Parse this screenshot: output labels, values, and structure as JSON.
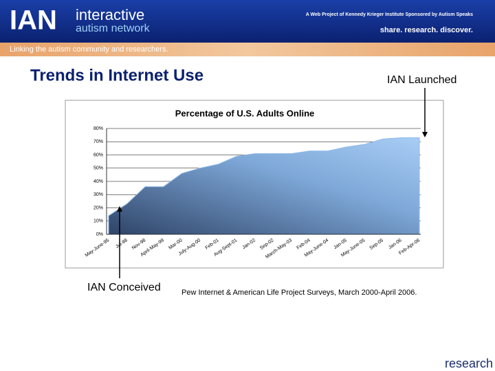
{
  "header": {
    "logo": "IAN",
    "name_line1": "interactive",
    "name_line2": "autism network",
    "sponsor": "A Web Project of Kennedy Krieger Institute  Sponsored by Autism Speaks",
    "motto": "share. research. discover.",
    "tagline": "Linking the autism community and researchers."
  },
  "slide_title": "Trends in Internet Use",
  "annotations": {
    "launched": "IAN Launched",
    "conceived": "IAN Conceived"
  },
  "source": "Pew Internet & American Life Project Surveys, March 2000-April 2006.",
  "footer": "research",
  "chart_data": {
    "type": "area",
    "title": "Percentage of U.S. Adults Online",
    "categories": [
      "May-June-95",
      "Jul-98",
      "Nov-98",
      "April-May-99",
      "Mar-00",
      "July-Aug-00",
      "Feb-01",
      "Aug-Sept-01",
      "Jan-02",
      "Sep-02",
      "March-May-03",
      "Feb-04",
      "May-June-04",
      "Jan-05",
      "May-June-05",
      "Sep-05",
      "Jan-06",
      "Feb-Apr-06"
    ],
    "values": [
      14,
      23,
      36,
      36,
      46,
      50,
      53,
      59,
      61,
      61,
      61,
      63,
      63,
      66,
      68,
      72,
      73,
      73
    ],
    "color": "#8fb8e8",
    "ylim": [
      0,
      80
    ],
    "yticks": [
      {
        "value": 0,
        "label": "0%"
      },
      {
        "value": 10,
        "label": "10%"
      },
      {
        "value": 20,
        "label": "20%"
      },
      {
        "value": 30,
        "label": "30%"
      },
      {
        "value": 40,
        "label": "40%"
      },
      {
        "value": 50,
        "label": "50%"
      },
      {
        "value": 60,
        "label": "60%"
      },
      {
        "value": 70,
        "label": "70%"
      },
      {
        "value": 80,
        "label": "80%"
      }
    ],
    "grid": true
  }
}
